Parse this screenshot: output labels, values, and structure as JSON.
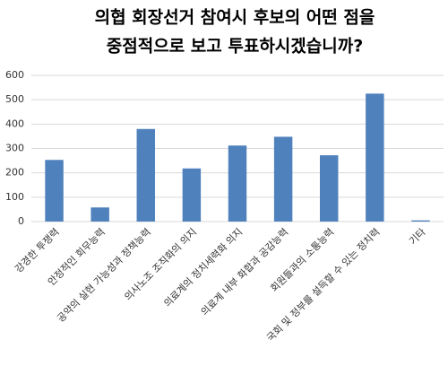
{
  "chart_data": {
    "type": "bar",
    "title": [
      "의협 회장선거 참여시 후보의 어떤 점을",
      "중점적으로 보고 투표하시겠습니까?"
    ],
    "categories": [
      "강경한 투쟁력",
      "안정적인 회무능력",
      "공약의 실현 가능성과 정책능력",
      "의사노조 조직화의 의지",
      "의료계의 정치세력화 의지",
      "의료계 내부 화합과 공감능력",
      "회원들과의 소통능력",
      "국회 및 정부를 설득할 수 있는 정치력",
      "기타"
    ],
    "values": [
      253,
      58,
      380,
      218,
      312,
      348,
      272,
      525,
      5
    ],
    "color": "#4f81bd",
    "ylim": [
      0,
      600
    ],
    "yticks": [
      0,
      100,
      200,
      300,
      400,
      500,
      600
    ],
    "grid": true
  }
}
